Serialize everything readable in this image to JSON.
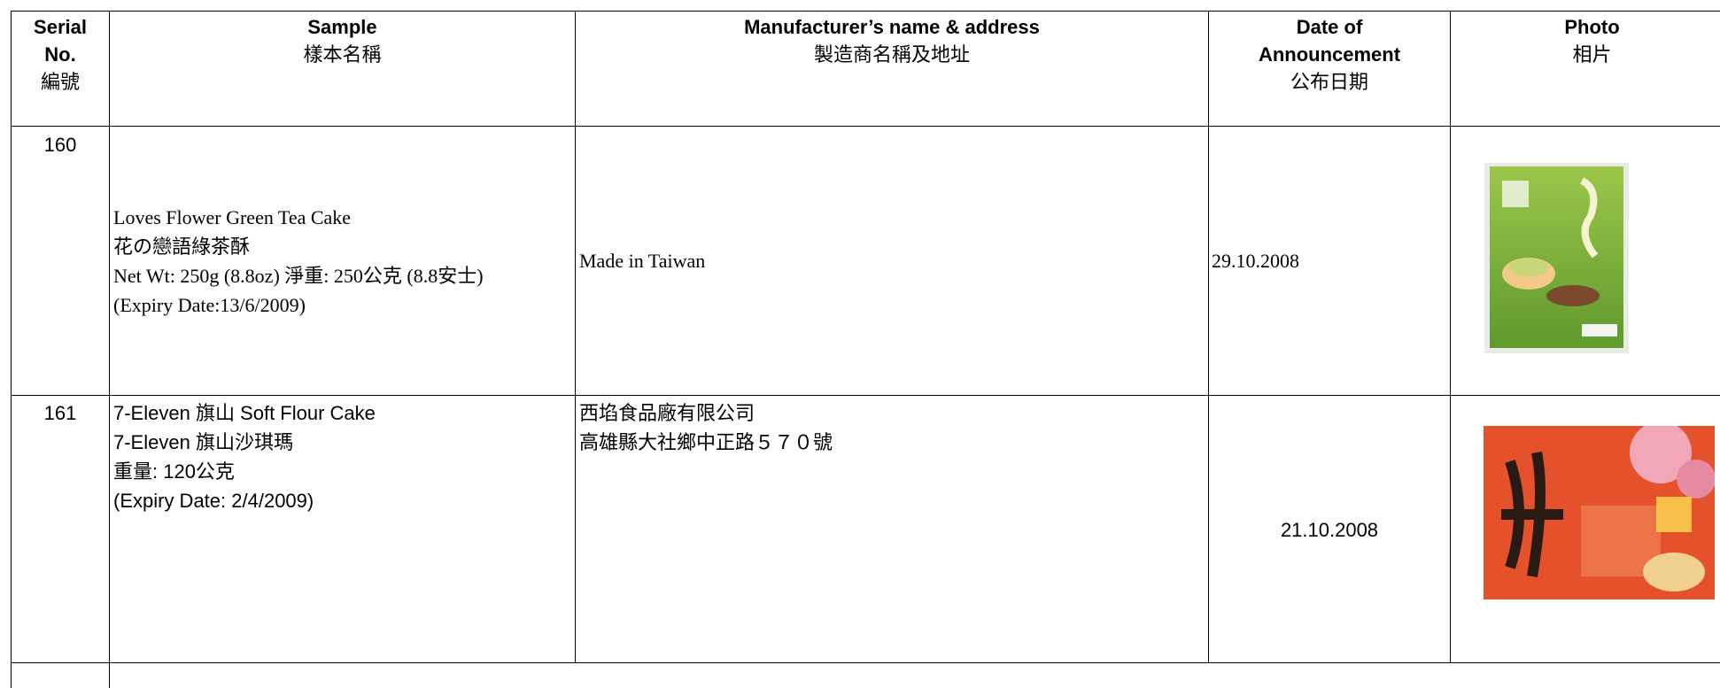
{
  "table": {
    "header": {
      "serial": [
        "Serial",
        "No.",
        "編號"
      ],
      "sample": [
        "Sample",
        "樣本名稱"
      ],
      "manufacturer": [
        "Manufacturer’s name & address",
        "製造商名稱及地址"
      ],
      "date": [
        "Date of",
        "Announcement",
        "公布日期"
      ],
      "photo": [
        "Photo",
        "相片"
      ]
    },
    "rows": [
      {
        "serial": "160",
        "sample": [
          "Loves Flower Green Tea Cake",
          "花の戀語綠茶酥",
          "Net Wt: 250g (8.8oz) 淨重: 250公克 (8.8安士)",
          "(Expiry Date:13/6/2009)"
        ],
        "manufacturer": [
          "Made in Taiwan"
        ],
        "date": "29.10.2008"
      },
      {
        "serial": "161",
        "sample": [
          "7-Eleven 旗山 Soft Flour Cake",
          "7-Eleven 旗山沙琪瑪",
          "重量: 120公克",
          "(Expiry Date: 2/4/2009)"
        ],
        "manufacturer": [
          "西埳食品廠有限公司",
          "高雄縣大社鄉中正路５７０號"
        ],
        "date": "21.10.2008"
      }
    ]
  }
}
